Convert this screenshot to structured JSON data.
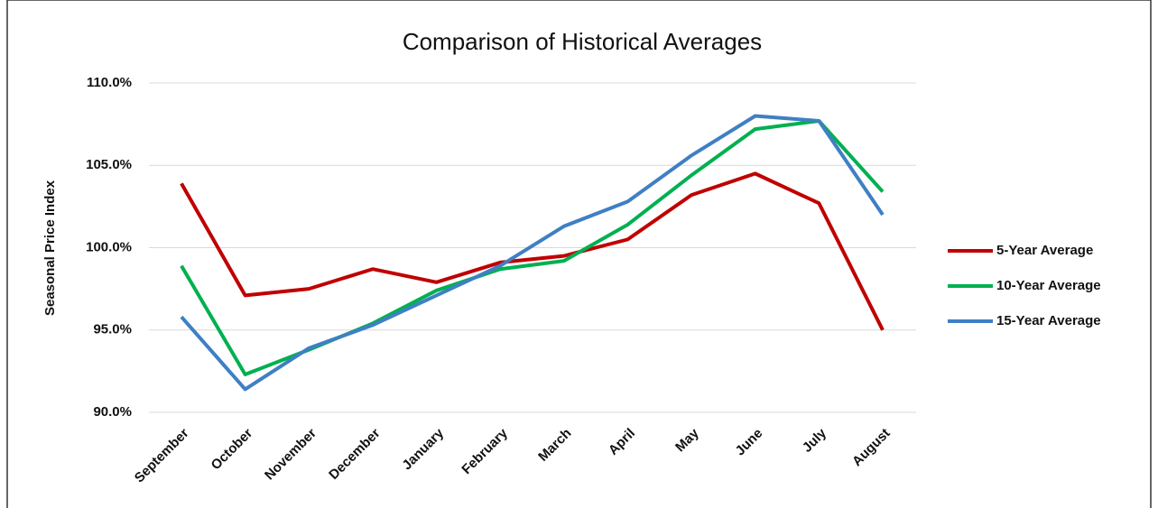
{
  "chart_data": {
    "type": "line",
    "title": "Comparison of Historical Averages",
    "y_label": "Seasonal Price Index",
    "categories": [
      "September",
      "October",
      "November",
      "December",
      "January",
      "February",
      "March",
      "April",
      "May",
      "June",
      "July",
      "August"
    ],
    "series": [
      {
        "name": "5-Year Average",
        "color": "#c00000",
        "values": [
          103.9,
          97.1,
          97.5,
          98.7,
          97.9,
          99.1,
          99.5,
          100.5,
          103.2,
          104.5,
          102.7,
          95.0
        ]
      },
      {
        "name": "10-Year Average",
        "color": "#00b050",
        "values": [
          98.9,
          92.3,
          93.8,
          95.4,
          97.4,
          98.7,
          99.2,
          101.4,
          104.4,
          107.2,
          107.7,
          103.4
        ]
      },
      {
        "name": "15-Year Average",
        "color": "#3f7fc4",
        "values": [
          95.8,
          91.4,
          93.9,
          95.3,
          97.1,
          98.9,
          101.3,
          102.8,
          105.6,
          108.0,
          107.7,
          102.0
        ]
      }
    ],
    "ylim": [
      90,
      110
    ],
    "yticks": [
      {
        "value": 90,
        "label": "90.0%"
      },
      {
        "value": 95,
        "label": "95.0%"
      },
      {
        "value": 100,
        "label": "100.0%"
      },
      {
        "value": 105,
        "label": "105.0%"
      },
      {
        "value": 110,
        "label": "110.0%"
      }
    ],
    "grid": true,
    "legend": "right"
  }
}
